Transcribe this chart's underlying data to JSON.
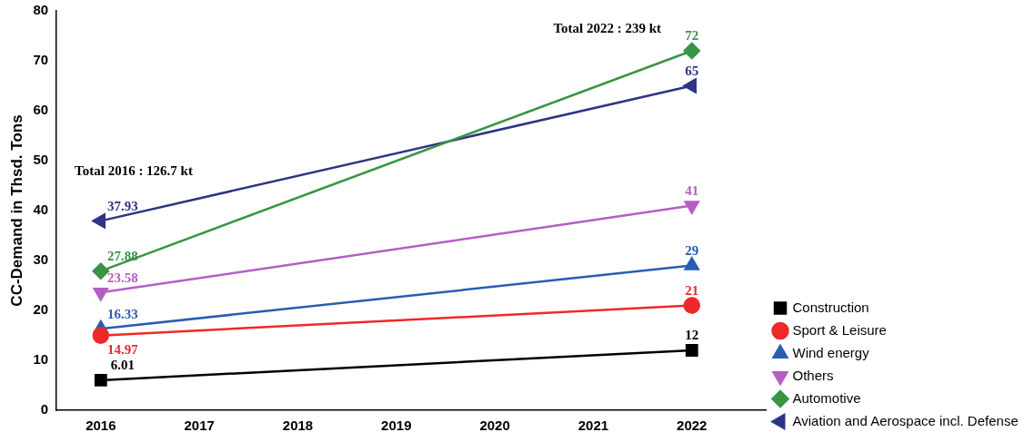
{
  "chart_data": {
    "type": "line",
    "ylabel": "CC-Demand in Thsd. Tons",
    "x": [
      2016,
      2022
    ],
    "xlim": [
      2015.55,
      2022.75
    ],
    "xticks": [
      2016,
      2017,
      2018,
      2019,
      2020,
      2021,
      2022
    ],
    "ylim": [
      0,
      80
    ],
    "yticks": [
      0,
      10,
      20,
      30,
      40,
      50,
      60,
      70,
      80
    ],
    "grid": false,
    "legend": "bottom right",
    "data_labels": true,
    "annotations": [
      "Total 2022 : 239 kt",
      "Total 2016 : 126.7 kt"
    ],
    "series": [
      {
        "name": "Construction",
        "color": "#000000",
        "marker": "square",
        "values": [
          6.01,
          12
        ]
      },
      {
        "name": "Sport & Leisure",
        "color": "#f02828",
        "marker": "circle",
        "values": [
          14.97,
          21
        ]
      },
      {
        "name": "Wind energy",
        "color": "#2a5cb4",
        "marker": "triangle",
        "values": [
          16.33,
          29
        ]
      },
      {
        "name": "Others",
        "color": "#b45fc4",
        "marker": "triangle-down",
        "values": [
          23.58,
          41
        ]
      },
      {
        "name": "Automotive",
        "color": "#3a9444",
        "marker": "diamond",
        "values": [
          27.88,
          72
        ]
      },
      {
        "name": "Aviation and Aerospace incl. Defense",
        "color": "#2e3484",
        "marker": "triangle-left",
        "values": [
          37.93,
          65
        ]
      }
    ]
  }
}
